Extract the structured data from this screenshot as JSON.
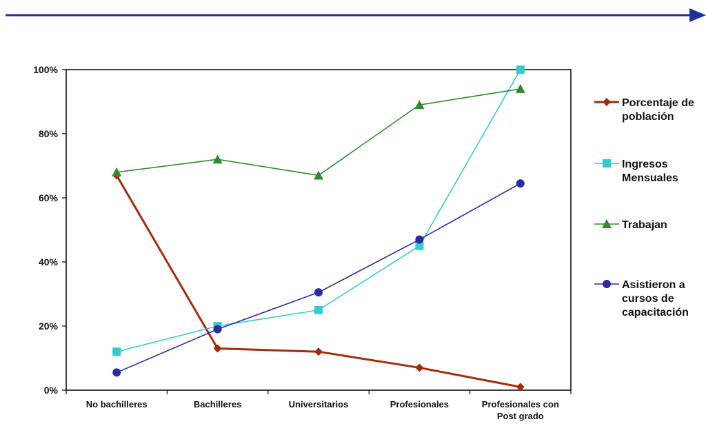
{
  "chart_data": {
    "type": "line",
    "categories": [
      "No bachilleres",
      "Bachilleres",
      "Universitarios",
      "Profesionales",
      "Profesionales con Post grado"
    ],
    "series": [
      {
        "name": "Porcentaje de población",
        "color": "#a52a0a",
        "marker": "diamond",
        "values": [
          67,
          13,
          12,
          7,
          1
        ]
      },
      {
        "name": "Ingresos Mensuales",
        "color": "#33cccc",
        "marker": "square",
        "values": [
          12,
          20,
          25,
          45,
          100
        ]
      },
      {
        "name": "Trabajan",
        "color": "#2e8b2e",
        "marker": "triangle",
        "values": [
          68,
          72,
          67,
          89,
          94
        ]
      },
      {
        "name": "Asistieron a cursos de capacitación",
        "color": "#2a2aa5",
        "marker": "circle",
        "values": [
          5.5,
          19,
          30.5,
          47,
          64.5
        ]
      }
    ],
    "ylim": [
      0,
      100
    ],
    "yticks": [
      "0%",
      "20%",
      "40%",
      "60%",
      "80%",
      "100%"
    ],
    "grid": false,
    "legend_position": "right"
  },
  "decor": {
    "arrow_color": "#1f2f9f"
  }
}
